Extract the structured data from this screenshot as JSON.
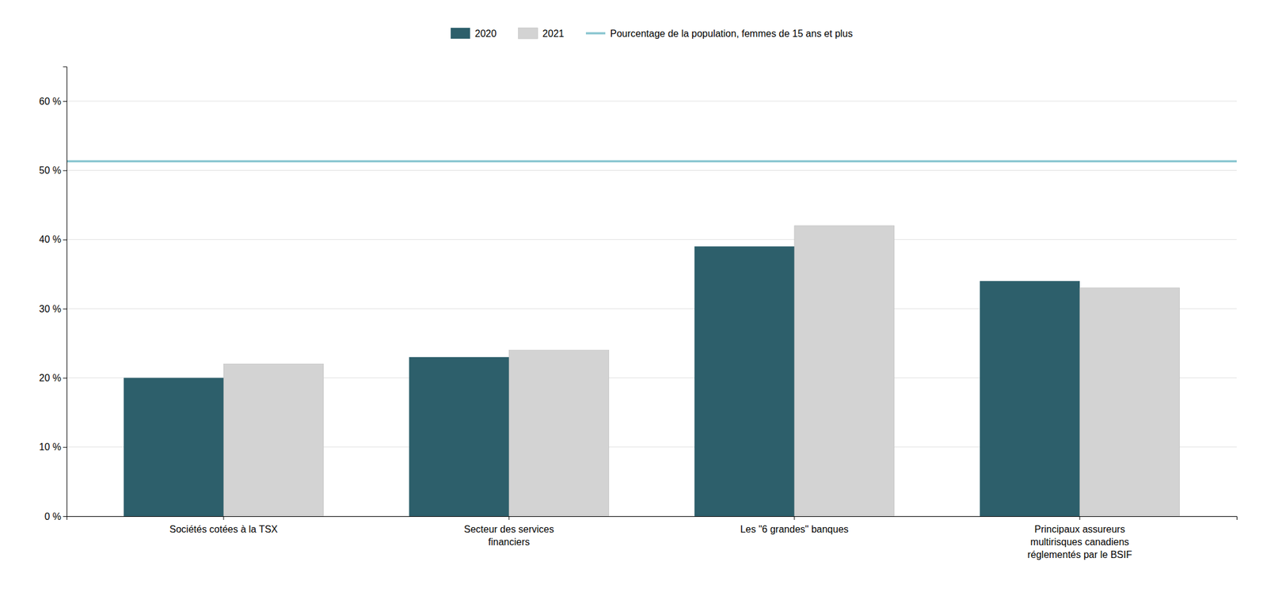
{
  "chart_data": {
    "type": "bar",
    "categories": [
      "Sociétés cotées à la TSX",
      "Secteur des services\nfinanciers",
      "Les \"6 grandes\" banques",
      "Principaux assureurs\nmultirisques canadiens\nréglementés par le BSIF"
    ],
    "series": [
      {
        "name": "2020",
        "color": "#2d5f6b",
        "values": [
          20,
          23,
          39,
          34
        ]
      },
      {
        "name": "2021",
        "color": "#d3d3d3",
        "values": [
          22,
          24,
          42,
          33
        ]
      }
    ],
    "reference_line": {
      "name": "Pourcentage de la population, femmes de 15 ans et plus",
      "value": 51.3,
      "color": "#88c5d0"
    },
    "ylim": [
      0,
      65
    ],
    "yticks": [
      {
        "value": 0,
        "label": "0 %"
      },
      {
        "value": 10,
        "label": "10 %"
      },
      {
        "value": 20,
        "label": "20 %"
      },
      {
        "value": 30,
        "label": "30 %"
      },
      {
        "value": 40,
        "label": "40 %"
      },
      {
        "value": 50,
        "label": "50 %"
      },
      {
        "value": 60,
        "label": "60 %"
      }
    ],
    "grid": true,
    "legend": "top"
  }
}
